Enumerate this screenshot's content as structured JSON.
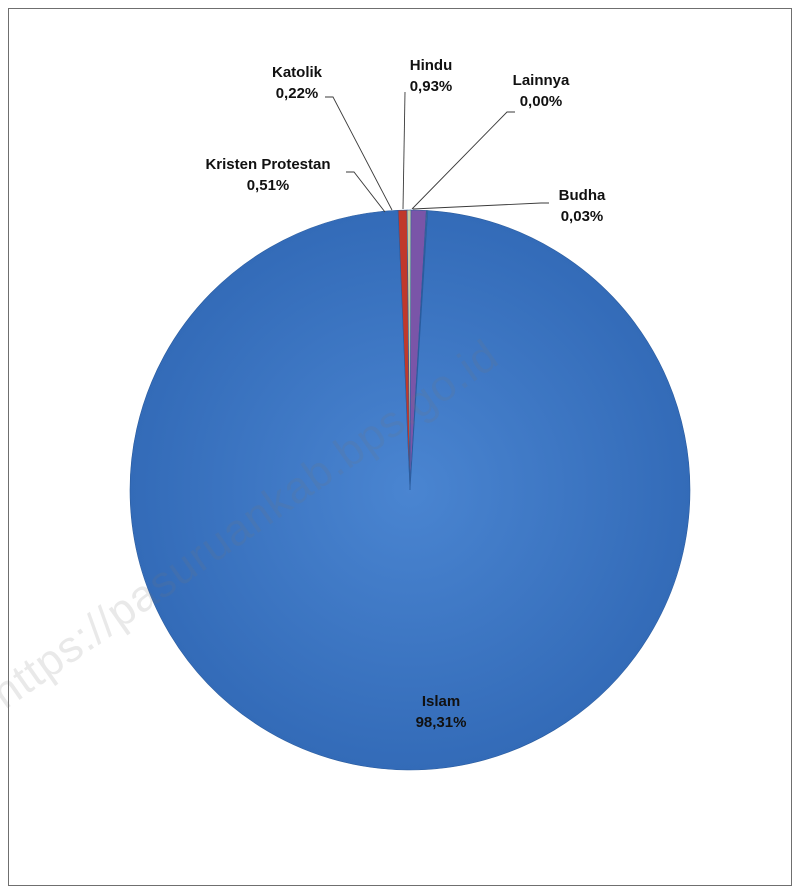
{
  "chart_data": {
    "type": "pie",
    "categories": [
      "Islam",
      "Kristen Protestan",
      "Katolik",
      "Hindu",
      "Lainnya",
      "Budha"
    ],
    "values": [
      98.31,
      0.51,
      0.22,
      0.93,
      0.0,
      0.03
    ],
    "value_labels": [
      "98,31%",
      "0,51%",
      "0,22%",
      "0,93%",
      "0,00%",
      "0,03%"
    ],
    "title": "",
    "colors": {
      "Islam": "#3a72bf",
      "Kristen Protestan": "#c0392b",
      "Katolik": "#c8cfa2",
      "Hindu": "#7a55a8",
      "Lainnya": "#4bb8c9",
      "Budha": "#e9952f"
    },
    "start_angle_deg": 0,
    "direction": "clockwise"
  },
  "watermark": {
    "text": "https://pasuruankab.bps.go.id"
  }
}
